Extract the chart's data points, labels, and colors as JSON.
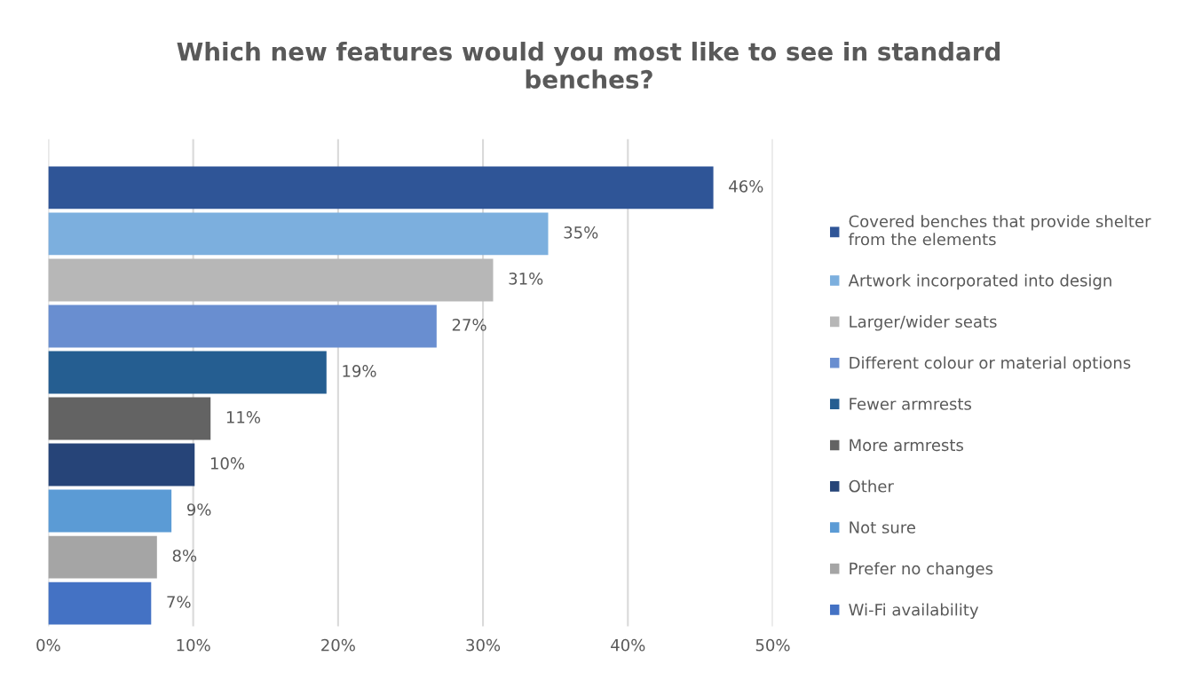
{
  "chart_data": {
    "type": "bar",
    "orientation": "horizontal",
    "title": "Which new features would you most like to see in standard\nbenches?",
    "categories": [
      null,
      null,
      null,
      null,
      null,
      null,
      null,
      null,
      null,
      null
    ],
    "series": [
      {
        "name": "Covered benches that provide shelter\nfrom the elements",
        "color": "#2f5597",
        "values": [
          45.9,
          null,
          null,
          null,
          null,
          null,
          null,
          null,
          null,
          null
        ],
        "value_labels": [
          "46%",
          null,
          null,
          null,
          null,
          null,
          null,
          null,
          null,
          null
        ]
      },
      {
        "name": "Artwork incorporated into design",
        "color": "#7cafde",
        "values": [
          null,
          34.5,
          null,
          null,
          null,
          null,
          null,
          null,
          null,
          null
        ],
        "value_labels": [
          null,
          "35%",
          null,
          null,
          null,
          null,
          null,
          null,
          null,
          null
        ]
      },
      {
        "name": "Larger/wider seats",
        "color": "#b7b7b7",
        "values": [
          null,
          null,
          30.7,
          null,
          null,
          null,
          null,
          null,
          null,
          null
        ],
        "value_labels": [
          null,
          null,
          "31%",
          null,
          null,
          null,
          null,
          null,
          null,
          null
        ]
      },
      {
        "name": "Different colour or material options",
        "color": "#698ed0",
        "values": [
          null,
          null,
          null,
          26.8,
          null,
          null,
          null,
          null,
          null,
          null
        ],
        "value_labels": [
          null,
          null,
          null,
          "27%",
          null,
          null,
          null,
          null,
          null,
          null
        ]
      },
      {
        "name": "Fewer armrests",
        "color": "#255e91",
        "values": [
          null,
          null,
          null,
          null,
          19.2,
          null,
          null,
          null,
          null,
          null
        ],
        "value_labels": [
          null,
          null,
          null,
          null,
          "19%",
          null,
          null,
          null,
          null,
          null
        ]
      },
      {
        "name": "More armrests",
        "color": "#636363",
        "values": [
          null,
          null,
          null,
          null,
          null,
          11.2,
          null,
          null,
          null,
          null
        ],
        "value_labels": [
          null,
          null,
          null,
          null,
          null,
          "11%",
          null,
          null,
          null,
          null
        ]
      },
      {
        "name": "Other",
        "color": "#264478",
        "values": [
          null,
          null,
          null,
          null,
          null,
          null,
          10.1,
          null,
          null,
          null
        ],
        "value_labels": [
          null,
          null,
          null,
          null,
          null,
          null,
          "10%",
          null,
          null,
          null
        ]
      },
      {
        "name": "Not sure",
        "color": "#5b9bd5",
        "values": [
          null,
          null,
          null,
          null,
          null,
          null,
          null,
          8.5,
          null,
          null
        ],
        "value_labels": [
          null,
          null,
          null,
          null,
          null,
          null,
          null,
          "9%",
          null,
          null
        ]
      },
      {
        "name": "Prefer no changes",
        "color": "#a5a5a5",
        "values": [
          null,
          null,
          null,
          null,
          null,
          null,
          null,
          null,
          7.5,
          null
        ],
        "value_labels": [
          null,
          null,
          null,
          null,
          null,
          null,
          null,
          null,
          "8%",
          null
        ]
      },
      {
        "name": "Wi-Fi availability",
        "color": "#4472c4",
        "values": [
          null,
          null,
          null,
          null,
          null,
          null,
          null,
          null,
          null,
          7.1
        ],
        "value_labels": [
          null,
          null,
          null,
          null,
          null,
          null,
          null,
          null,
          null,
          "7%"
        ]
      }
    ],
    "xlim": [
      0,
      50
    ],
    "xticks": [
      {
        "value": 0,
        "label": "0%"
      },
      {
        "value": 10,
        "label": "10%"
      },
      {
        "value": 20,
        "label": "20%"
      },
      {
        "value": 30,
        "label": "30%"
      },
      {
        "value": 40,
        "label": "40%"
      },
      {
        "value": 50,
        "label": "50%"
      }
    ],
    "grid": "x",
    "legend": "right",
    "tick_labels": "x"
  }
}
